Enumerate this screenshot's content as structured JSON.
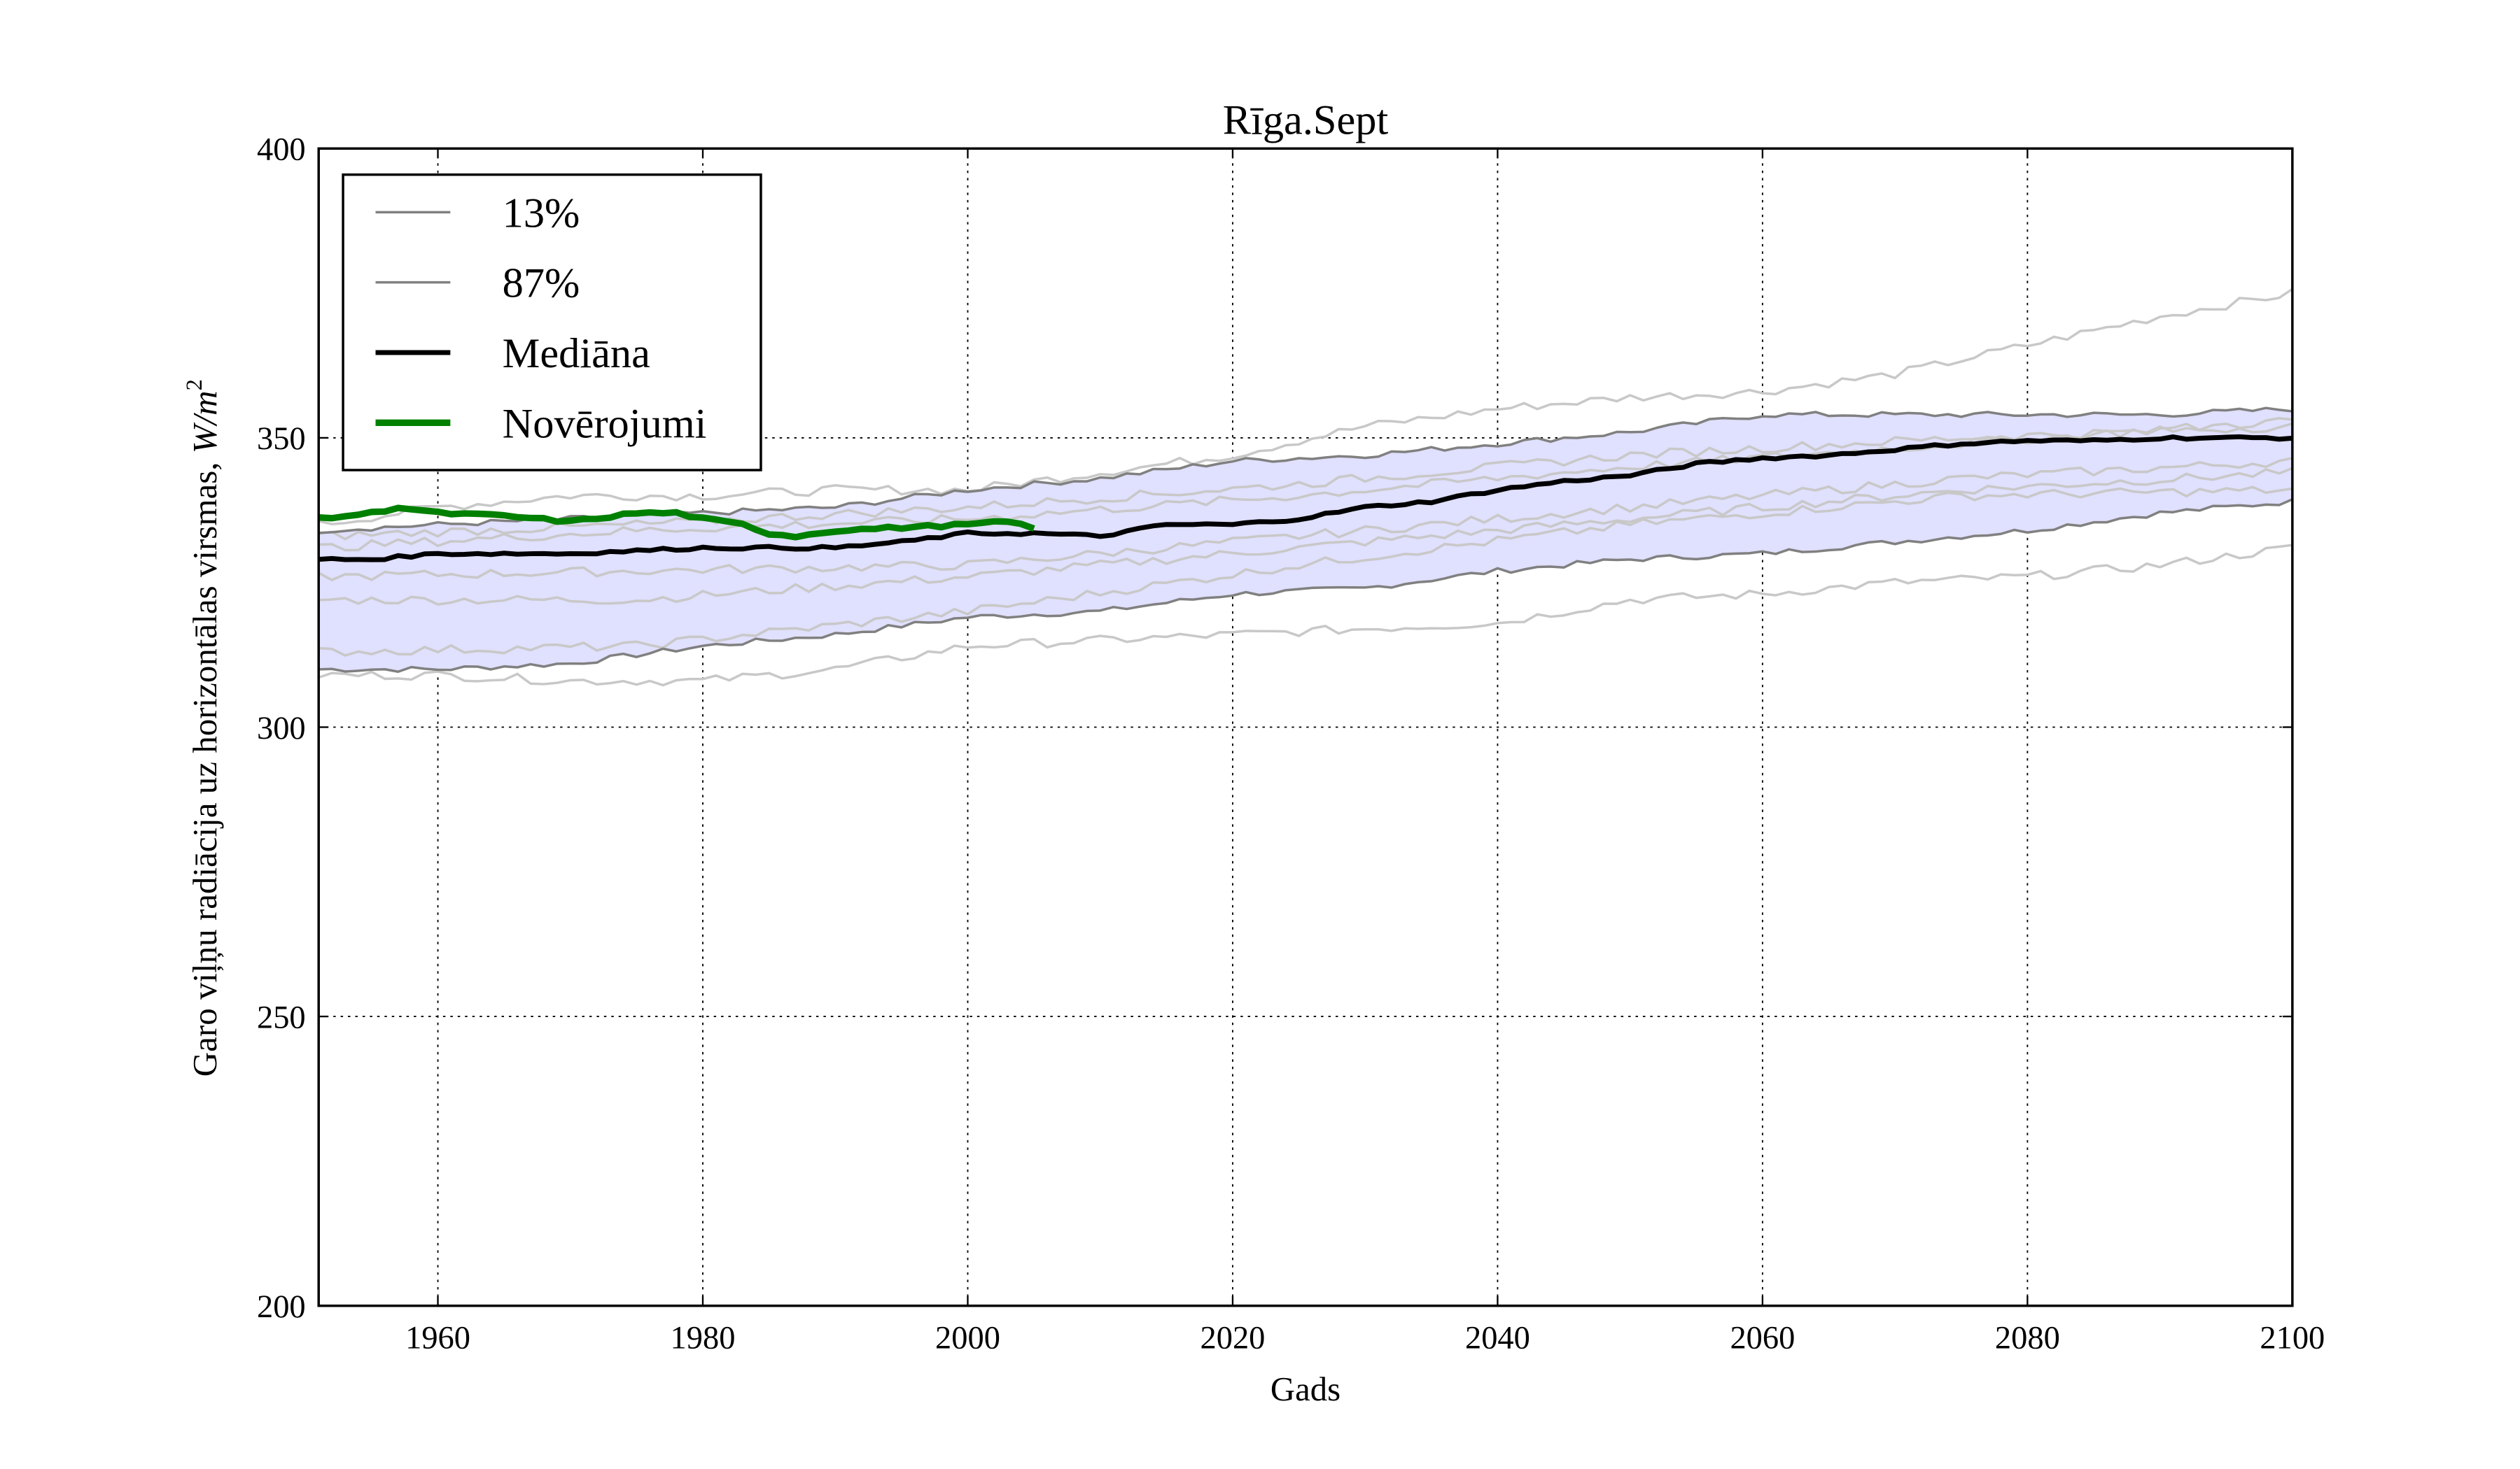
{
  "chart_data": {
    "type": "line",
    "title": "Rīga.Sept",
    "xlabel": "Gads",
    "ylabel": "Garo viļņu radiācija uz horizontālas virsmas, ",
    "ylabel_unit": "W/m",
    "ylabel_unit_sup": "2",
    "xlim": [
      1951,
      2100
    ],
    "ylim": [
      200,
      400
    ],
    "xticks": [
      1960,
      1980,
      2000,
      2020,
      2040,
      2060,
      2080,
      2100
    ],
    "yticks": [
      200,
      250,
      300,
      350,
      400
    ],
    "grid": true,
    "legend_position": "top-left",
    "band_color": "#e0e0ff",
    "series": [
      {
        "name": "13%",
        "color": "#808080",
        "width": 1.5,
        "legend": true,
        "x": [
          1951,
          1960,
          1970,
          1980,
          1990,
          2000,
          2010,
          2020,
          2030,
          2040,
          2050,
          2060,
          2070,
          2080,
          2090,
          2100
        ],
        "y": [
          310,
          310,
          311,
          314,
          316,
          319,
          320,
          323,
          324,
          327,
          329,
          330,
          332,
          334,
          337,
          339
        ]
      },
      {
        "name": "87%",
        "color": "#808080",
        "width": 1.5,
        "legend": true,
        "x": [
          1951,
          1960,
          1970,
          1980,
          1990,
          2000,
          2010,
          2020,
          2030,
          2040,
          2050,
          2060,
          2070,
          2080,
          2090,
          2100
        ],
        "y": [
          334,
          335,
          336,
          337,
          338,
          341,
          343,
          346,
          347,
          349,
          351,
          354,
          354,
          354,
          354,
          355
        ]
      },
      {
        "name": "Mediāna",
        "color": "#000000",
        "width": 3,
        "legend": true,
        "x": [
          1951,
          1955,
          1960,
          1970,
          1980,
          1985,
          1990,
          1995,
          2000,
          2005,
          2010,
          2015,
          2020,
          2025,
          2030,
          2035,
          2040,
          2045,
          2050,
          2055,
          2060,
          2065,
          2070,
          2075,
          2080,
          2085,
          2090,
          2095,
          2100
        ],
        "y": [
          329,
          329,
          330,
          330,
          331,
          331,
          331,
          332,
          333.5,
          333.5,
          333,
          335,
          335,
          336,
          338,
          339,
          341,
          342.5,
          343.5,
          345.5,
          346.5,
          347,
          348,
          349,
          349.5,
          349.5,
          350,
          350,
          350
        ]
      },
      {
        "name": "Novērojumi",
        "color": "#008000",
        "width": 4,
        "legend": true,
        "x": [
          1951,
          1955,
          1957,
          1960,
          1965,
          1970,
          1975,
          1978,
          1980,
          1983,
          1985,
          1987,
          1990,
          1995,
          2000,
          2003,
          2005
        ],
        "y": [
          336,
          337,
          338,
          337,
          336.5,
          335.5,
          337,
          337,
          336,
          335,
          333.5,
          333,
          334,
          334.5,
          335,
          335.5,
          334.5
        ]
      }
    ],
    "ensemble_members": [
      {
        "x": [
          1951,
          1960,
          1970,
          1980,
          1990,
          2000,
          2010,
          2020,
          2030,
          2040,
          2050,
          2060,
          2070,
          2080,
          2090,
          2100
        ],
        "y": [
          335,
          338,
          340,
          340,
          341,
          341,
          344,
          347,
          352,
          355,
          357,
          358,
          361,
          366,
          371,
          375
        ]
      },
      {
        "x": [
          1951,
          1960,
          1970,
          1980,
          1990,
          2000,
          2010,
          2020,
          2030,
          2040,
          2050,
          2060,
          2070,
          2080,
          2090,
          2100
        ],
        "y": [
          309,
          309,
          308,
          308,
          310,
          314,
          315,
          316,
          317,
          318,
          322,
          323,
          325,
          326,
          328,
          331
        ]
      },
      {
        "x": [
          1951,
          1975,
          2000,
          2025,
          2050,
          2075,
          2100
        ],
        "y": [
          322,
          322,
          326,
          331,
          336,
          341,
          344
        ]
      },
      {
        "x": [
          1951,
          1975,
          2000,
          2025,
          2050,
          2075,
          2100
        ],
        "y": [
          326,
          327,
          328,
          333,
          338,
          343,
          346
        ]
      },
      {
        "x": [
          1951,
          1975,
          2000,
          2025,
          2050,
          2075,
          2100
        ],
        "y": [
          313,
          314,
          320,
          328,
          335,
          340,
          341
        ]
      },
      {
        "x": [
          1951,
          1975,
          2000,
          2025,
          2050,
          2075,
          2100
        ],
        "y": [
          333,
          335,
          338,
          342,
          347,
          350,
          352
        ]
      },
      {
        "x": [
          1951,
          1975,
          2000,
          2025,
          2050,
          2075,
          2100
        ],
        "y": [
          331,
          334,
          336,
          340,
          345,
          349,
          353
        ]
      }
    ]
  }
}
